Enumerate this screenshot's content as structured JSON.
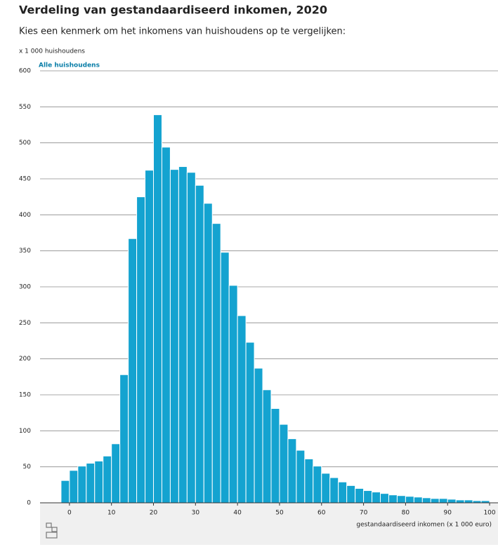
{
  "chart_data": {
    "type": "histogram",
    "title": "Verdeling van gestandaardiseerd inkomen, 2020",
    "subtitle": "Kies een kenmerk om het inkomens van huishoudens op te vergelijken:",
    "y_label": "x 1 000 huishoudens",
    "x_label": "gestandaardiseerd inkomen (x 1 000 euro)",
    "series_name": "Alle huishoudens",
    "color": "#14a3d0",
    "bins": [
      -2,
      0,
      2,
      4,
      6,
      8,
      10,
      12,
      14,
      16,
      18,
      20,
      22,
      24,
      26,
      28,
      30,
      32,
      34,
      36,
      38,
      40,
      42,
      44,
      46,
      48,
      50,
      52,
      54,
      56,
      58,
      60,
      62,
      64,
      66,
      68,
      70,
      72,
      74,
      76,
      78,
      80,
      82,
      84,
      86,
      88,
      90,
      92,
      94,
      96,
      98,
      100
    ],
    "counts": [
      31,
      45,
      51,
      55,
      58,
      65,
      82,
      178,
      367,
      425,
      462,
      539,
      494,
      463,
      467,
      459,
      441,
      416,
      388,
      348,
      302,
      260,
      223,
      187,
      157,
      131,
      109,
      89,
      73,
      61,
      51,
      41,
      35,
      29,
      24,
      20,
      17,
      15,
      13,
      11,
      10,
      9,
      8,
      7,
      6,
      6,
      5,
      4,
      4,
      3,
      3
    ],
    "xlim": [
      -7,
      102
    ],
    "xticks": [
      0,
      10,
      20,
      30,
      40,
      50,
      60,
      70,
      80,
      90,
      100
    ],
    "ylim": [
      0,
      600
    ],
    "yticks": [
      0,
      50,
      100,
      150,
      200,
      250,
      300,
      350,
      400,
      450,
      500,
      550,
      600
    ],
    "grid": true
  }
}
